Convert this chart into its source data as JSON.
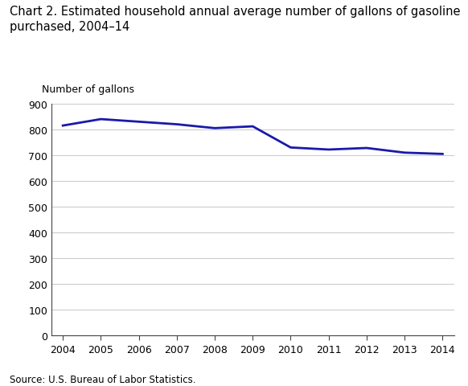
{
  "title_line1": "Chart 2. Estimated household annual average number of gallons of gasoline",
  "title_line2": "purchased, 2004–14",
  "ylabel_text": "Number of gallons",
  "source": "Source: U.S. Bureau of Labor Statistics.",
  "years": [
    2004,
    2005,
    2006,
    2007,
    2008,
    2009,
    2010,
    2011,
    2012,
    2013,
    2014
  ],
  "values": [
    815,
    840,
    830,
    820,
    805,
    812,
    730,
    722,
    728,
    710,
    705
  ],
  "line_color": "#1a1aaa",
  "line_width": 2.0,
  "ylim": [
    0,
    900
  ],
  "yticks": [
    0,
    100,
    200,
    300,
    400,
    500,
    600,
    700,
    800,
    900
  ],
  "xticks": [
    2004,
    2005,
    2006,
    2007,
    2008,
    2009,
    2010,
    2011,
    2012,
    2013,
    2014
  ],
  "background_color": "#ffffff",
  "grid_color": "#cccccc",
  "title_fontsize": 10.5,
  "tick_fontsize": 9,
  "ylabel_fontsize": 9,
  "source_fontsize": 8.5
}
